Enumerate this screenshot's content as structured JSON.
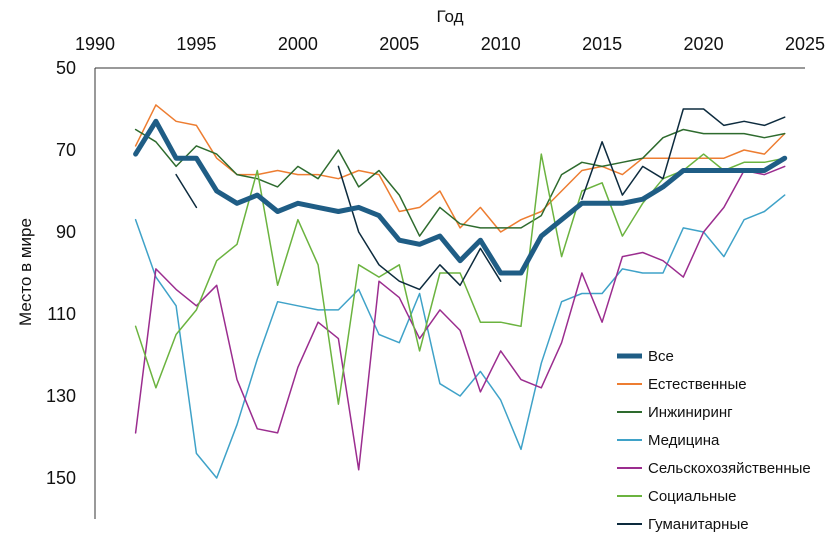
{
  "chart_data": {
    "type": "line",
    "title": "",
    "xlabel": "Год",
    "ylabel": "Место в мире",
    "xlim": [
      1990,
      2025
    ],
    "ylim": [
      50,
      160
    ],
    "y_inverted": true,
    "x_axis_position": "top",
    "x_ticks": [
      1990,
      1995,
      2000,
      2005,
      2010,
      2015,
      2020,
      2025
    ],
    "y_ticks": [
      50,
      70,
      90,
      110,
      130,
      150
    ],
    "grid": false,
    "legend_position": "bottom-right",
    "x": [
      1992,
      1993,
      1994,
      1995,
      1996,
      1997,
      1998,
      1999,
      2000,
      2001,
      2002,
      2003,
      2004,
      2005,
      2006,
      2007,
      2008,
      2009,
      2010,
      2011,
      2012,
      2013,
      2014,
      2015,
      2016,
      2017,
      2018,
      2019,
      2020,
      2021,
      2022,
      2023,
      2024
    ],
    "series": [
      {
        "name": "Все",
        "color": "#1f5d85",
        "width": 5,
        "values": [
          71,
          63,
          72,
          72,
          80,
          83,
          81,
          85,
          83,
          84,
          85,
          84,
          86,
          92,
          93,
          91,
          97,
          92,
          100,
          100,
          91,
          87,
          83,
          83,
          83,
          82,
          79,
          75,
          75,
          75,
          75,
          75,
          72
        ]
      },
      {
        "name": "Естественные",
        "color": "#ed7d31",
        "width": 1.5,
        "values": [
          69,
          59,
          63,
          64,
          72,
          76,
          76,
          75,
          76,
          76,
          77,
          75,
          76,
          85,
          84,
          80,
          89,
          84,
          90,
          87,
          85,
          80,
          75,
          74,
          76,
          72,
          72,
          72,
          72,
          72,
          70,
          71,
          66
        ]
      },
      {
        "name": "Инжиниринг",
        "color": "#2e6b2e",
        "width": 1.5,
        "values": [
          65,
          68,
          74,
          69,
          71,
          76,
          77,
          79,
          74,
          77,
          70,
          79,
          75,
          81,
          91,
          84,
          88,
          89,
          89,
          89,
          86,
          76,
          73,
          74,
          73,
          72,
          67,
          65,
          66,
          66,
          66,
          67,
          66
        ]
      },
      {
        "name": "Медицина",
        "color": "#3fa2c8",
        "width": 1.5,
        "values": [
          87,
          101,
          108,
          144,
          150,
          137,
          121,
          107,
          108,
          109,
          109,
          104,
          115,
          117,
          105,
          127,
          130,
          124,
          131,
          143,
          122,
          107,
          105,
          105,
          99,
          100,
          100,
          89,
          90,
          96,
          87,
          85,
          81
        ]
      },
      {
        "name": "Сельскохозяйственные",
        "color": "#9b2d8f",
        "width": 1.5,
        "values": [
          139,
          99,
          104,
          108,
          103,
          126,
          138,
          139,
          123,
          112,
          116,
          148,
          102,
          106,
          116,
          109,
          114,
          129,
          119,
          126,
          128,
          117,
          100,
          112,
          96,
          95,
          97,
          101,
          90,
          84,
          75,
          76,
          74
        ]
      },
      {
        "name": "Социальные",
        "color": "#6bb33f",
        "width": 1.5,
        "values": [
          113,
          128,
          115,
          109,
          97,
          93,
          75,
          103,
          87,
          98,
          132,
          98,
          101,
          98,
          119,
          100,
          100,
          112,
          112,
          113,
          71,
          96,
          80,
          78,
          91,
          83,
          77,
          75,
          71,
          75,
          73,
          73,
          72
        ]
      },
      {
        "name": "Гуманитарные",
        "color": "#0d2b3e",
        "width": 1.5,
        "values": [
          null,
          null,
          76,
          84,
          null,
          null,
          null,
          85,
          null,
          null,
          74,
          90,
          98,
          102,
          104,
          98,
          103,
          94,
          102,
          null,
          70,
          null,
          82,
          68,
          81,
          74,
          77,
          60,
          60,
          64,
          63,
          64,
          62
        ]
      }
    ]
  }
}
